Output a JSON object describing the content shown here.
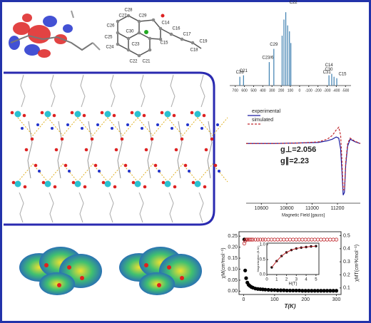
{
  "figure": {
    "molecule_labels": [
      "C27",
      "C28",
      "C29",
      "C26",
      "C30",
      "C25",
      "C24",
      "C23",
      "C22",
      "C21",
      "C14",
      "C15",
      "C16",
      "C17",
      "C18",
      "C19"
    ]
  },
  "chart_data": [
    {
      "type": "stick",
      "x": [
        650,
        610,
        330,
        280,
        190,
        170,
        150,
        130,
        110,
        95,
        -320,
        -350,
        -375,
        -405
      ],
      "values": [
        12,
        14,
        32,
        50,
        68,
        90,
        100,
        82,
        74,
        58,
        14,
        16,
        12,
        10
      ],
      "categories": [
        "C28",
        "C21",
        "C23/6",
        "C29",
        null,
        "C30",
        "C27",
        "C22",
        null,
        null,
        "C14",
        "C30",
        "C31",
        "C15"
      ],
      "label_colors": [
        "#2a3fa0",
        "#2a3fa0",
        "#2a3fa0",
        "#2a3fa0",
        null,
        "#c8282d",
        "#c8282d",
        "#c8282d",
        null,
        null,
        "#2a3fa0",
        "#c8282d",
        "#c8282d",
        "#c8282d"
      ],
      "color": "#3d7fb0",
      "xlim": [
        760,
        -560
      ],
      "ylim": [
        0,
        105
      ],
      "xticks": [
        700,
        600,
        500,
        400,
        300,
        200,
        100,
        0,
        -100,
        -200,
        -300,
        -400,
        -500
      ]
    },
    {
      "type": "line",
      "x": [
        10480,
        10700,
        10900,
        11050,
        11120,
        11160,
        11190,
        11210,
        11225,
        11235,
        11245,
        11255,
        11265,
        11280,
        11300,
        11340,
        11380
      ],
      "series": [
        {
          "name": "experimental",
          "color": "#1a1aa0",
          "dash": false,
          "values": [
            0,
            0,
            0.01,
            0.02,
            0.05,
            0.08,
            0.12,
            0.1,
            -0.1,
            -0.5,
            -0.95,
            -0.9,
            -0.4,
            -0.05,
            0.08,
            0.03,
            0
          ]
        },
        {
          "name": "simulated",
          "color": "#c0282d",
          "dash": true,
          "values": [
            0,
            0,
            0.01,
            0.03,
            0.08,
            0.15,
            0.25,
            0.3,
            0.15,
            -0.3,
            -0.85,
            -0.85,
            -0.35,
            0,
            0.1,
            0.04,
            0
          ]
        }
      ],
      "xlabel": "Magnetic Field [gauss]",
      "xlim": [
        10480,
        11380
      ],
      "xticks": [
        10600,
        10800,
        11000,
        11200
      ],
      "ylim": [
        -1.1,
        0.7
      ],
      "annotations": [
        "g⊥=2.056",
        "g∥=2.23"
      ]
    },
    {
      "type": "scatter",
      "x": [
        2,
        5,
        8,
        12,
        16,
        20,
        25,
        30,
        38,
        46,
        54,
        62,
        70,
        80,
        90,
        100,
        110,
        120,
        130,
        140,
        150,
        160,
        170,
        180,
        190,
        200,
        210,
        220,
        230,
        240,
        250,
        260,
        270,
        280,
        290,
        300
      ],
      "series": [
        {
          "color": "#000000",
          "mode": "filled",
          "values": [
            0.235,
            0.094,
            0.059,
            0.039,
            0.029,
            0.024,
            0.019,
            0.016,
            0.012,
            0.01,
            0.009,
            0.008,
            0.007,
            0.006,
            0.005,
            0.005,
            0.004,
            0.004,
            0.004,
            0.003,
            0.003,
            0.003,
            0.003,
            0.003,
            0.002,
            0.002,
            0.002,
            0.002,
            0.002,
            0.002,
            0.002,
            0.002,
            0.002,
            0.002,
            0.002,
            0.002
          ]
        },
        {
          "color": "#c0282d",
          "mode": "open",
          "axis": "y2",
          "values": [
            0.44,
            0.46,
            0.47,
            0.47,
            0.47,
            0.47,
            0.47,
            0.47,
            0.47,
            0.47,
            0.47,
            0.47,
            0.47,
            0.47,
            0.47,
            0.47,
            0.47,
            0.47,
            0.47,
            0.47,
            0.47,
            0.47,
            0.47,
            0.47,
            0.47,
            0.47,
            0.47,
            0.47,
            0.47,
            0.47,
            0.47,
            0.47,
            0.47,
            0.47,
            0.47,
            0.47
          ]
        }
      ],
      "xlabel": "T(K)",
      "ylabel": "χM(cm³mol⁻¹)",
      "y2label": "χMT(cm³Kmol⁻¹)",
      "xlim": [
        -15,
        315
      ],
      "xticks": [
        0,
        100,
        200,
        300
      ],
      "ylim": [
        -0.015,
        0.27
      ],
      "yticks": [
        {
          "value": 0,
          "label": "0.00"
        },
        {
          "value": 0.05,
          "label": "0.05"
        },
        {
          "value": 0.1,
          "label": "0.10"
        },
        {
          "value": 0.15,
          "label": "0.15"
        },
        {
          "value": 0.2,
          "label": "0.20"
        },
        {
          "value": 0.25,
          "label": "0.25"
        }
      ],
      "y2lim": [
        0.05,
        0.53
      ],
      "y2ticks": [
        0.1,
        0.2,
        0.3,
        0.4,
        0.5
      ]
    },
    {
      "type": "scatter",
      "x": [
        0.5,
        1,
        1.5,
        2,
        2.5,
        3,
        3.5,
        4,
        4.5,
        5
      ],
      "series": [
        {
          "color": "#000000",
          "mode": "filled",
          "values": [
            0.24,
            0.45,
            0.62,
            0.74,
            0.82,
            0.87,
            0.9,
            0.92,
            0.94,
            0.95
          ]
        },
        {
          "color": "#c0282d",
          "mode": "line",
          "values": [
            0.24,
            0.45,
            0.62,
            0.74,
            0.82,
            0.87,
            0.9,
            0.92,
            0.94,
            0.95
          ]
        }
      ],
      "xlabel": "H(T)",
      "ylabel": "Magnetization (B.M.)",
      "xlim": [
        0,
        5.3
      ],
      "xticks": [
        0,
        1,
        2,
        3,
        4,
        5
      ],
      "ylim": [
        0,
        1.05
      ],
      "yticks": [
        {
          "value": 0,
          "label": "0.0"
        },
        {
          "value": 0.5,
          "label": "0.5"
        },
        {
          "value": 1,
          "label": "1.0"
        }
      ]
    }
  ]
}
